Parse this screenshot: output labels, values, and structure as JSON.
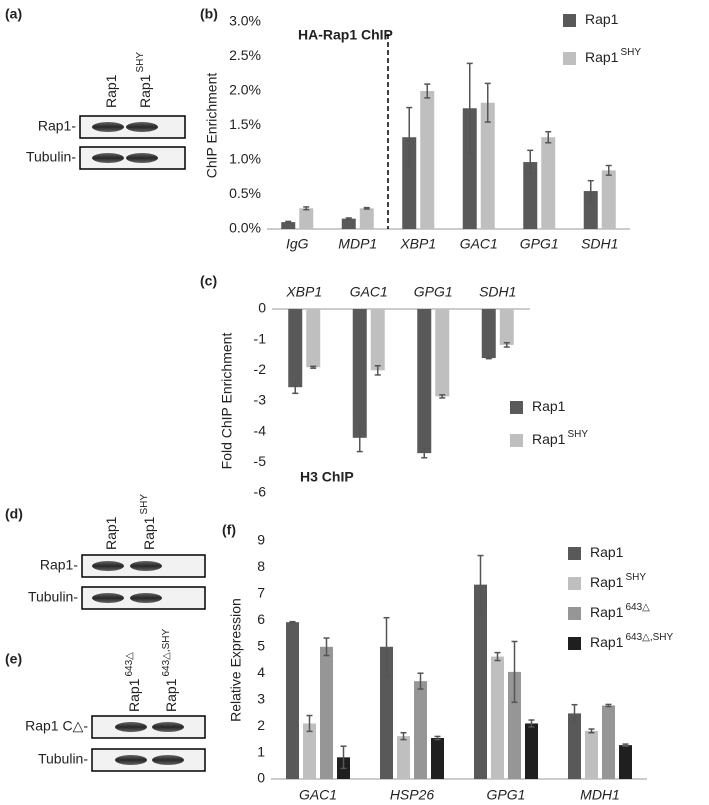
{
  "chart_data": [
    {
      "type": "bar",
      "panel_label": "(b)",
      "annotation": "HA-Rap1 ChIP",
      "y_label": "ChIP Enrichment",
      "categories": [
        "IgG",
        "MDP1",
        "XBP1",
        "GAC1",
        "GPG1",
        "SDH1"
      ],
      "series": [
        {
          "name": "Rap1",
          "color": "#595959",
          "values": [
            0.1,
            0.15,
            1.33,
            1.75,
            0.97,
            0.55
          ],
          "errors": [
            0.01,
            0.01,
            0.43,
            0.65,
            0.17,
            0.15
          ]
        },
        {
          "name": "Rap1",
          "superscript": "SHY",
          "color": "#bfbfbf",
          "values": [
            0.3,
            0.3,
            2.0,
            1.83,
            1.33,
            0.85
          ],
          "errors": [
            0.02,
            0.01,
            0.1,
            0.28,
            0.08,
            0.07
          ]
        }
      ],
      "ylim": [
        0,
        3
      ],
      "yticks": [
        {
          "value": 0,
          "label": "0.0%"
        },
        {
          "value": 0.5,
          "label": "0.5%"
        },
        {
          "value": 1,
          "label": "1.0%"
        },
        {
          "value": 1.5,
          "label": "1.5%"
        },
        {
          "value": 2,
          "label": "2.0%"
        },
        {
          "value": 2.5,
          "label": "2.5%"
        },
        {
          "value": 3,
          "label": "3.0%"
        }
      ]
    },
    {
      "type": "bar",
      "panel_label": "(c)",
      "annotation": "H3 ChIP",
      "y_label": "Fold ChIP Enrichment",
      "categories": [
        "XBP1",
        "GAC1",
        "GPG1",
        "SDH1"
      ],
      "series": [
        {
          "name": "Rap1",
          "color": "#595959",
          "values": [
            -2.55,
            -4.2,
            -4.7,
            -1.6
          ],
          "errors": [
            0.2,
            0.45,
            0.15,
            0.02
          ]
        },
        {
          "name": "Rap1",
          "superscript": "SHY",
          "color": "#bfbfbf",
          "values": [
            -1.9,
            -2.0,
            -2.85,
            -1.17
          ],
          "errors": [
            0.03,
            0.15,
            0.05,
            0.07
          ]
        }
      ],
      "ylim": [
        -6,
        0
      ],
      "yticks": [
        0,
        -1,
        -2,
        -3,
        -4,
        -5,
        -6
      ]
    },
    {
      "type": "bar",
      "panel_label": "(f)",
      "y_label": "Relative Expression",
      "categories": [
        "GAC1",
        "HSP26",
        "GPG1",
        "MDH1"
      ],
      "series": [
        {
          "name": "Rap1",
          "color": "#595959",
          "values": [
            5.93,
            5.0,
            7.35,
            2.48
          ],
          "errors": [
            0.02,
            1.1,
            1.1,
            0.33
          ]
        },
        {
          "name": "Rap1",
          "superscript": "SHY",
          "color": "#bfbfbf",
          "values": [
            2.1,
            1.62,
            4.63,
            1.82
          ],
          "errors": [
            0.3,
            0.13,
            0.15,
            0.07
          ]
        },
        {
          "name": "Rap1",
          "superscript": "643△",
          "color": "#969696",
          "values": [
            5.0,
            3.7,
            4.05,
            2.78
          ],
          "errors": [
            0.33,
            0.3,
            1.15,
            0.04
          ]
        },
        {
          "name": "Rap1",
          "superscript": "643△,SHY",
          "color": "#1f1f1f",
          "values": [
            0.82,
            1.55,
            2.1,
            1.28
          ],
          "errors": [
            0.42,
            0.06,
            0.13,
            0.04
          ]
        }
      ],
      "ylim": [
        0,
        9
      ],
      "yticks": [
        0,
        1,
        2,
        3,
        4,
        5,
        6,
        7,
        8,
        9
      ]
    }
  ],
  "blots": [
    {
      "panel_label": "(a)",
      "lanes": [
        {
          "name": "Rap1"
        },
        {
          "name": "Rap1",
          "superscript": "SHY"
        }
      ],
      "rows": [
        "Rap1-",
        "Tubulin-"
      ]
    },
    {
      "panel_label": "(d)",
      "lanes": [
        {
          "name": "Rap1"
        },
        {
          "name": "Rap1",
          "superscript": "SHY"
        }
      ],
      "rows": [
        "Rap1-",
        "Tubulin-"
      ]
    },
    {
      "panel_label": "(e)",
      "lanes": [
        {
          "name": "Rap1",
          "superscript": "643△"
        },
        {
          "name": "Rap1",
          "superscript": "643△,SHY"
        }
      ],
      "rows": [
        "Rap1 C△-",
        "Tubulin-"
      ]
    }
  ]
}
